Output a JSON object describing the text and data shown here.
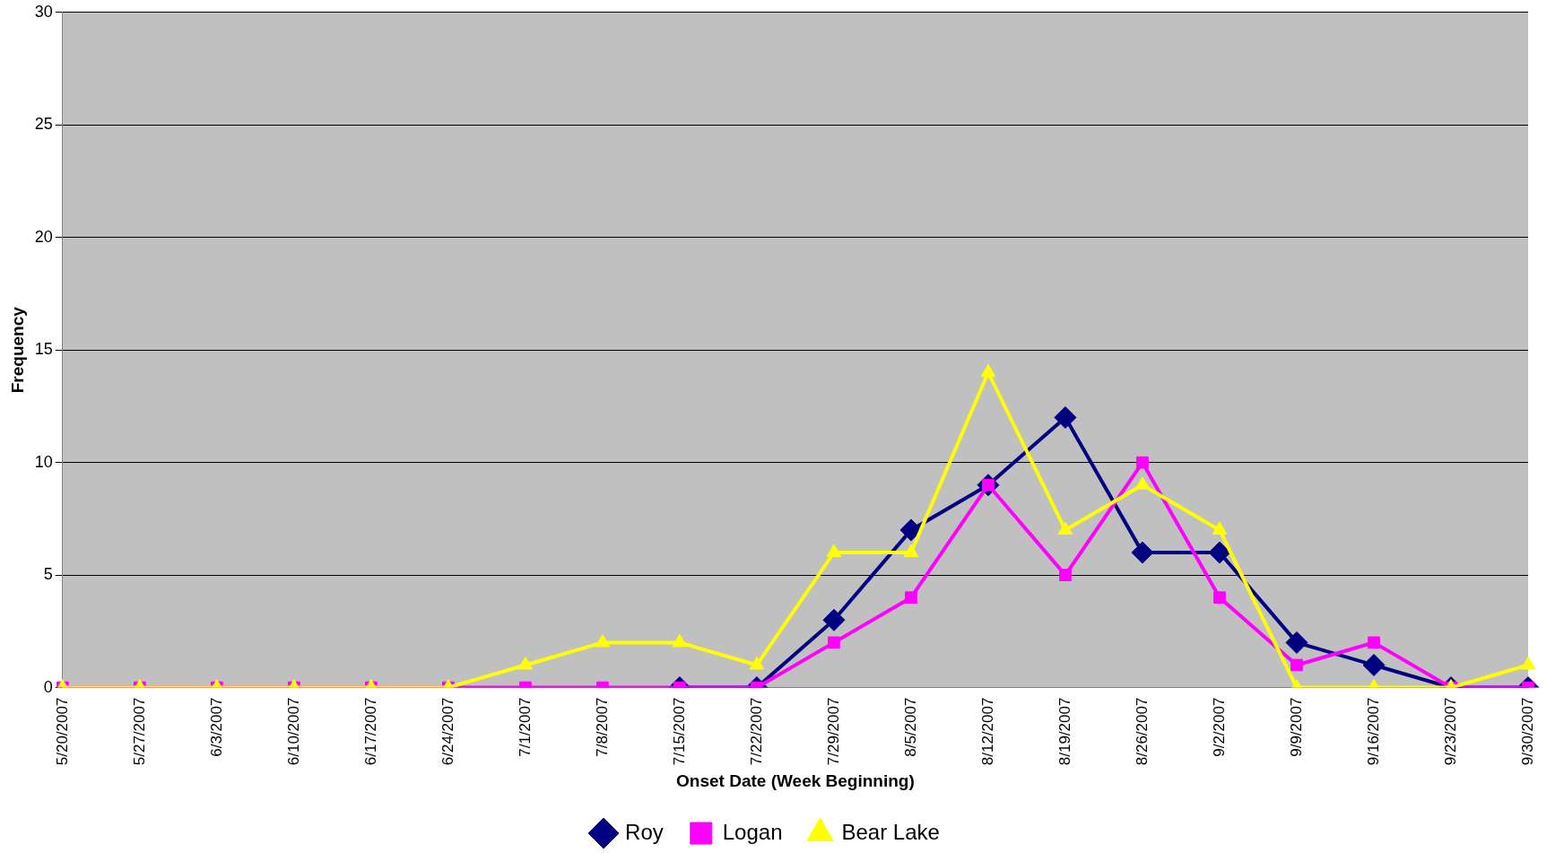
{
  "chart_data": {
    "type": "line",
    "xlabel": "Onset Date (Week Beginning)",
    "ylabel": "Frequency",
    "categories": [
      "5/20/2007",
      "5/27/2007",
      "6/3/2007",
      "6/10/2007",
      "6/17/2007",
      "6/24/2007",
      "7/1/2007",
      "7/8/2007",
      "7/15/2007",
      "7/22/2007",
      "7/29/2007",
      "8/5/2007",
      "8/12/2007",
      "8/19/2007",
      "8/26/2007",
      "9/2/2007",
      "9/9/2007",
      "9/16/2007",
      "9/23/2007",
      "9/30/2007"
    ],
    "series": [
      {
        "name": "Roy",
        "color": "#000080",
        "marker": "diamond",
        "values": [
          null,
          null,
          null,
          null,
          null,
          null,
          null,
          null,
          0,
          0,
          3,
          7,
          9,
          12,
          6,
          6,
          2,
          1,
          0,
          0
        ]
      },
      {
        "name": "Logan",
        "color": "#ff00ff",
        "marker": "square",
        "values": [
          0,
          0,
          0,
          0,
          0,
          0,
          0,
          0,
          0,
          0,
          2,
          4,
          9,
          5,
          10,
          4,
          1,
          2,
          0,
          0
        ]
      },
      {
        "name": "Bear Lake",
        "color": "#ffff00",
        "marker": "triangle",
        "values": [
          0,
          0,
          0,
          0,
          0,
          0,
          1,
          2,
          2,
          1,
          6,
          6,
          14,
          7,
          9,
          7,
          0,
          0,
          0,
          1
        ]
      }
    ],
    "ylim": [
      0,
      30
    ],
    "yticks": [
      0,
      5,
      10,
      15,
      20,
      25,
      30
    ],
    "grid": "y",
    "legend": "bottom",
    "line_style": "solid"
  }
}
